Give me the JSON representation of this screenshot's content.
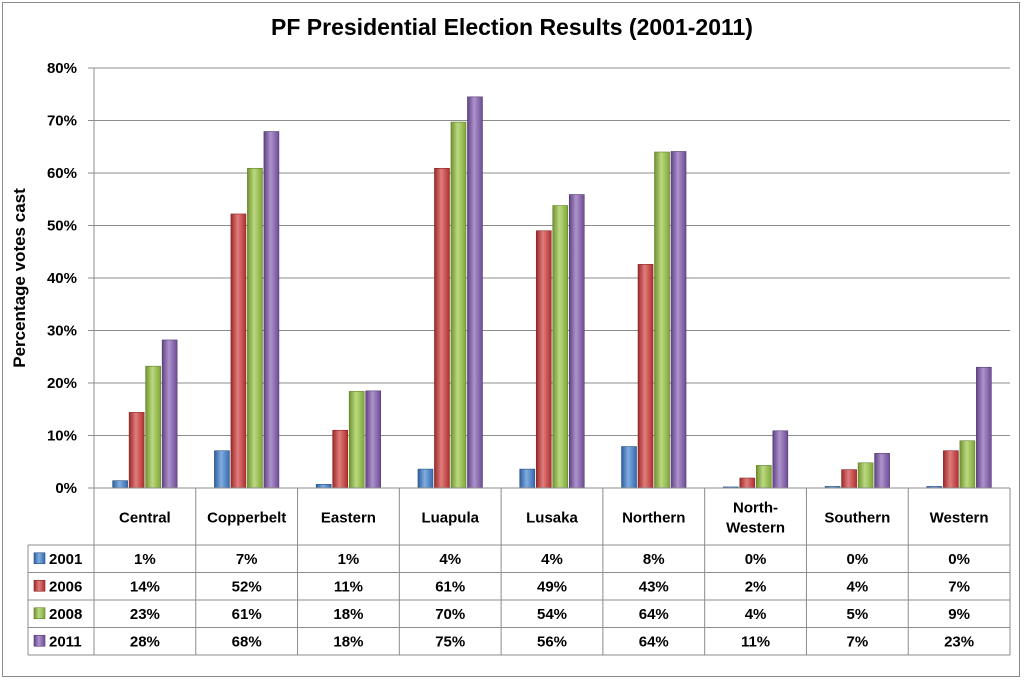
{
  "chart_data": {
    "type": "bar",
    "title": "PF Presidential Election Results (2001-2011)",
    "ylabel": "Percentage votes cast",
    "xlabel": "",
    "ylim": [
      0,
      80
    ],
    "yticks": [
      "0%",
      "10%",
      "20%",
      "30%",
      "40%",
      "50%",
      "60%",
      "70%",
      "80%"
    ],
    "grid": true,
    "legend_position": "data-table-left",
    "categories": [
      "Central",
      "Copperbelt",
      "Eastern",
      "Luapula",
      "Lusaka",
      "Northern",
      "North-Western",
      "Southern",
      "Western"
    ],
    "category_display": [
      [
        "Central"
      ],
      [
        "Copperbelt"
      ],
      [
        "Eastern"
      ],
      [
        "Luapula"
      ],
      [
        "Lusaka"
      ],
      [
        "Northern"
      ],
      [
        "North-",
        "Western"
      ],
      [
        "Southern"
      ],
      [
        "Western"
      ]
    ],
    "series": [
      {
        "name": "2001",
        "color": "#3d7fcf",
        "values": [
          1.4,
          7.1,
          0.7,
          3.6,
          3.6,
          7.9,
          0.2,
          0.3,
          0.3
        ],
        "labels": [
          "1%",
          "7%",
          "1%",
          "4%",
          "4%",
          "8%",
          "0%",
          "0%",
          "0%"
        ]
      },
      {
        "name": "2006",
        "color": "#d03737",
        "values": [
          14.4,
          52.2,
          11.0,
          60.9,
          49.0,
          42.6,
          1.9,
          3.5,
          7.1
        ],
        "labels": [
          "14%",
          "52%",
          "11%",
          "61%",
          "49%",
          "43%",
          "2%",
          "4%",
          "7%"
        ]
      },
      {
        "name": "2008",
        "color": "#96c43e",
        "values": [
          23.2,
          60.9,
          18.4,
          69.7,
          53.8,
          64.0,
          4.3,
          4.8,
          9.0
        ],
        "labels": [
          "23%",
          "61%",
          "18%",
          "70%",
          "54%",
          "64%",
          "4%",
          "5%",
          "9%"
        ]
      },
      {
        "name": "2011",
        "color": "#8159b0",
        "values": [
          28.2,
          67.9,
          18.5,
          74.5,
          55.9,
          64.1,
          10.9,
          6.6,
          23.0
        ],
        "labels": [
          "28%",
          "68%",
          "18%",
          "75%",
          "56%",
          "64%",
          "11%",
          "7%",
          "23%"
        ]
      }
    ]
  }
}
